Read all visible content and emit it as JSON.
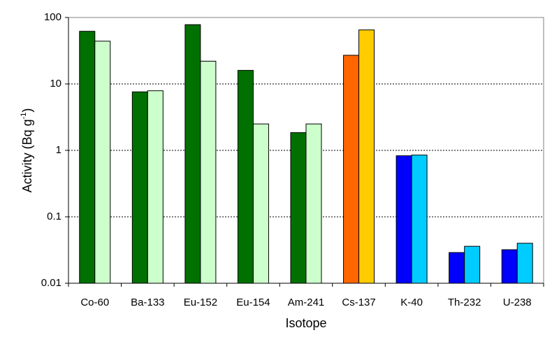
{
  "chart_data": {
    "type": "bar",
    "y_label_parts": [
      "Activity (Bq g",
      "-1",
      ")"
    ],
    "x_label": "Isotope",
    "categories": [
      "Co-60",
      "Ba-133",
      "Eu-152",
      "Eu-154",
      "Am-241",
      "Cs-137",
      "K-40",
      "Th-232",
      "U-238"
    ],
    "series": [
      {
        "colors": [
          "#007000",
          "#007000",
          "#007000",
          "#007000",
          "#007000",
          "#ff6600",
          "#0000ff",
          "#0000ff",
          "#0000ff"
        ],
        "values": [
          62,
          7.6,
          78,
          16,
          1.85,
          27,
          0.83,
          0.029,
          0.032
        ]
      },
      {
        "colors": [
          "#ccffcc",
          "#ccffcc",
          "#ccffcc",
          "#ccffcc",
          "#ccffcc",
          "#ffcc00",
          "#00ccff",
          "#00ccff",
          "#00ccff"
        ],
        "values": [
          44,
          7.9,
          22,
          2.5,
          2.5,
          65,
          0.85,
          0.036,
          0.04
        ]
      }
    ],
    "log_y": true,
    "ylim": [
      0.01,
      100
    ],
    "yticks": [
      0.01,
      0.1,
      1,
      10,
      100
    ],
    "grid": true
  }
}
